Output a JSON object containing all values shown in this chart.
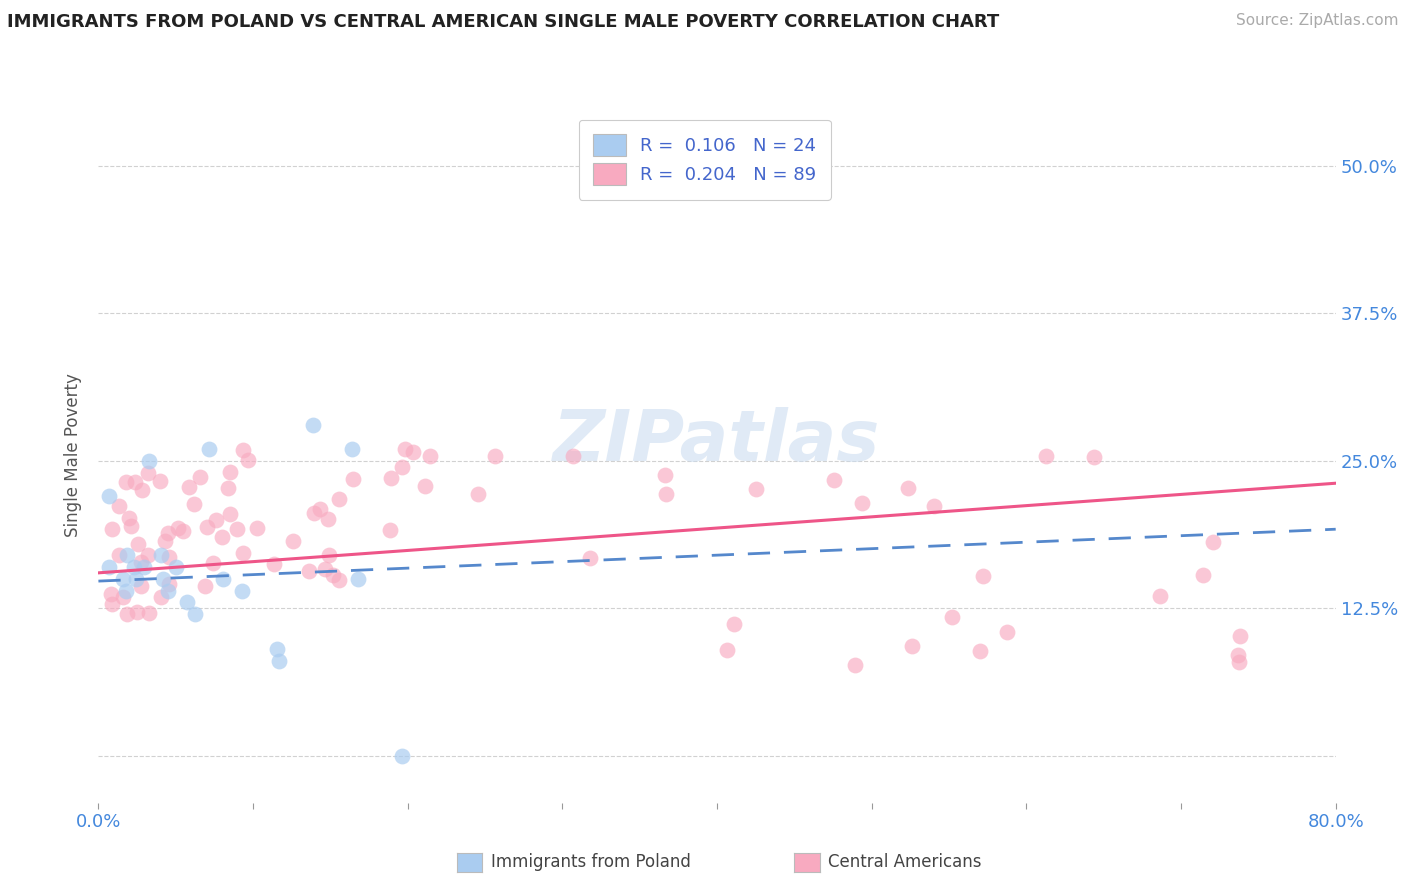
{
  "title": "IMMIGRANTS FROM POLAND VS CENTRAL AMERICAN SINGLE MALE POVERTY CORRELATION CHART",
  "source": "Source: ZipAtlas.com",
  "ylabel": "Single Male Poverty",
  "xlim": [
    0.0,
    0.8
  ],
  "ylim": [
    -0.04,
    0.55
  ],
  "yticks": [
    0.0,
    0.125,
    0.25,
    0.375,
    0.5
  ],
  "ytick_labels": [
    "",
    "12.5%",
    "25.0%",
    "37.5%",
    "50.0%"
  ],
  "xtick_labels_left": "0.0%",
  "xtick_labels_right": "80.0%",
  "legend_R1": "0.106",
  "legend_N1": "24",
  "legend_R2": "0.204",
  "legend_N2": "89",
  "color_poland": "#aaccf0",
  "color_central": "#f8aac0",
  "line_color_poland": "#5588cc",
  "line_color_central": "#ee5588",
  "scatter_alpha_poland": 0.7,
  "scatter_alpha_central": 0.65,
  "scatter_size": 130,
  "background_color": "#ffffff",
  "grid_color": "#cccccc",
  "label_color": "#4488dd",
  "tick_color": "#999999",
  "watermark_color": "#ccddf0",
  "legend_text_color": "#4466cc",
  "bottom_label_color": "#444444",
  "poland_line_intercept": 0.148,
  "poland_line_slope": 0.055,
  "central_line_intercept": 0.155,
  "central_line_slope": 0.095
}
